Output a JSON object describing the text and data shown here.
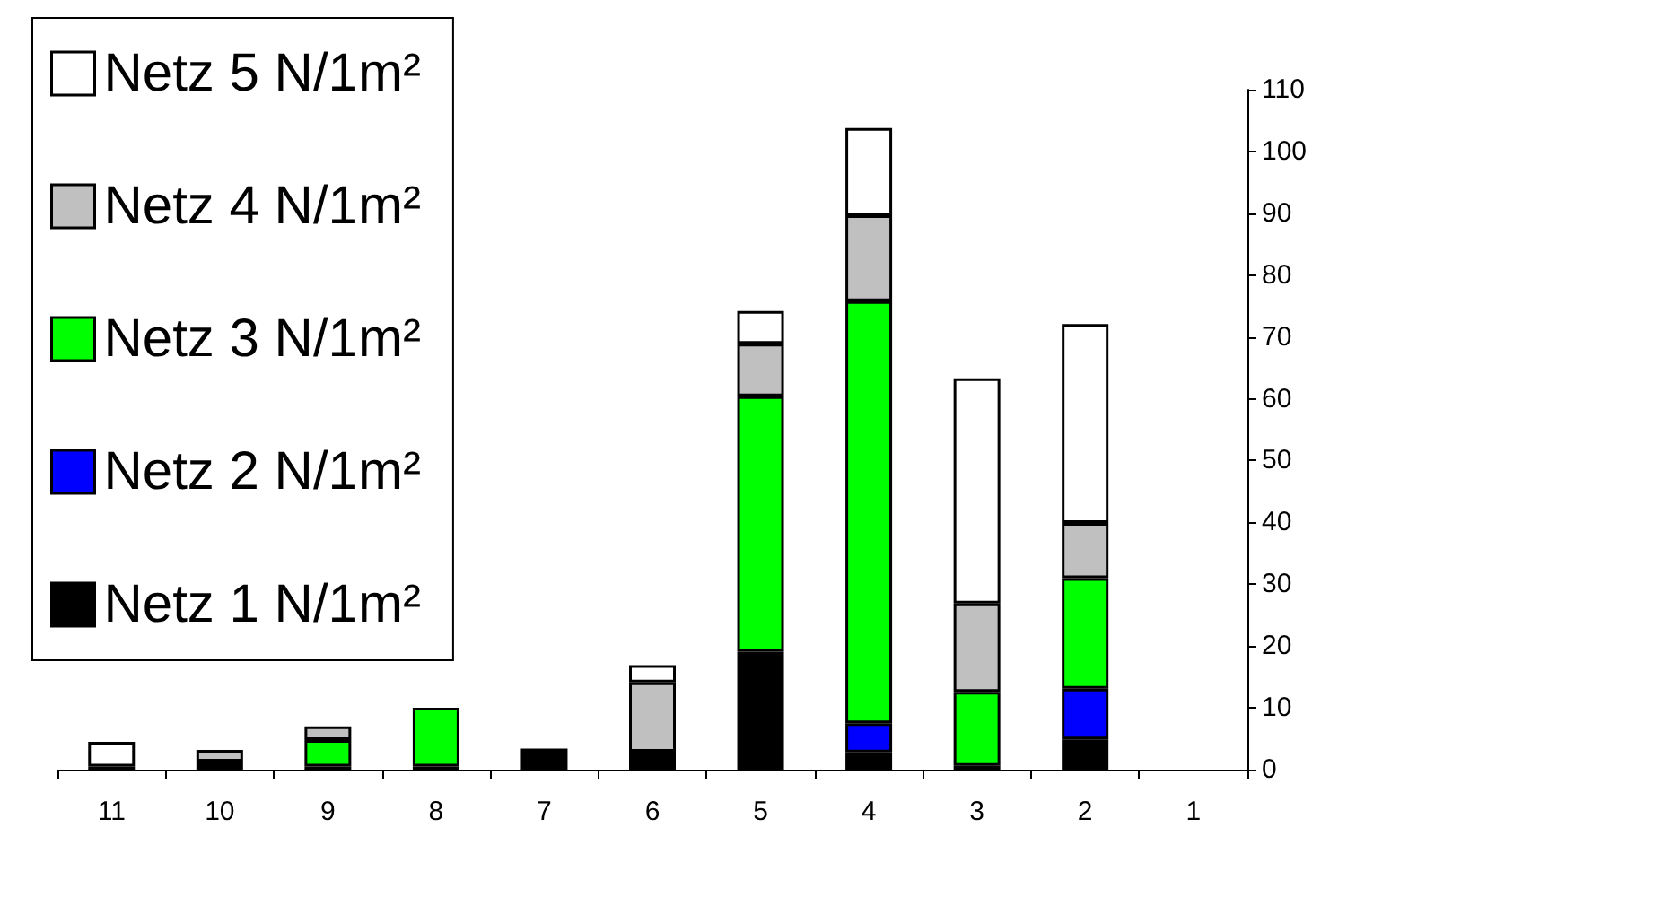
{
  "chart_data": {
    "type": "bar",
    "stacked": true,
    "categories": [
      "11",
      "10",
      "9",
      "8",
      "7",
      "6",
      "5",
      "4",
      "3",
      "2",
      "1"
    ],
    "series": [
      {
        "name": "Netz 1 N/1m²",
        "color": "#000000",
        "values": [
          0.5,
          1.3,
          0.5,
          0.5,
          3.4,
          2.9,
          19.1,
          2.8,
          0.6,
          4.9,
          0
        ]
      },
      {
        "name": "Netz 2 N/1m²",
        "color": "#0000ff",
        "values": [
          0,
          0,
          0,
          0,
          0,
          0,
          0,
          4.7,
          0,
          8.2,
          0
        ]
      },
      {
        "name": "Netz 3 N/1m²",
        "color": "#00ff00",
        "values": [
          0,
          0,
          4.3,
          9.5,
          null,
          0,
          41.3,
          68.3,
          12,
          17.9,
          0
        ]
      },
      {
        "name": "Netz 4 N/1m²",
        "color": "#c0c0c0",
        "values": [
          0,
          1.9,
          2.2,
          null,
          null,
          11.2,
          8.5,
          13.9,
          14.3,
          8.9,
          0
        ]
      },
      {
        "name": "Netz 5 N/1m²",
        "color": "#ffffff",
        "values": [
          4,
          null,
          null,
          null,
          null,
          2.8,
          5.3,
          14.1,
          36.4,
          32.2,
          0
        ]
      }
    ],
    "ylim": [
      0,
      110
    ],
    "yticks": [
      0,
      10,
      20,
      30,
      40,
      50,
      60,
      70,
      80,
      90,
      100,
      110
    ],
    "grid": false,
    "legend": "top left"
  }
}
